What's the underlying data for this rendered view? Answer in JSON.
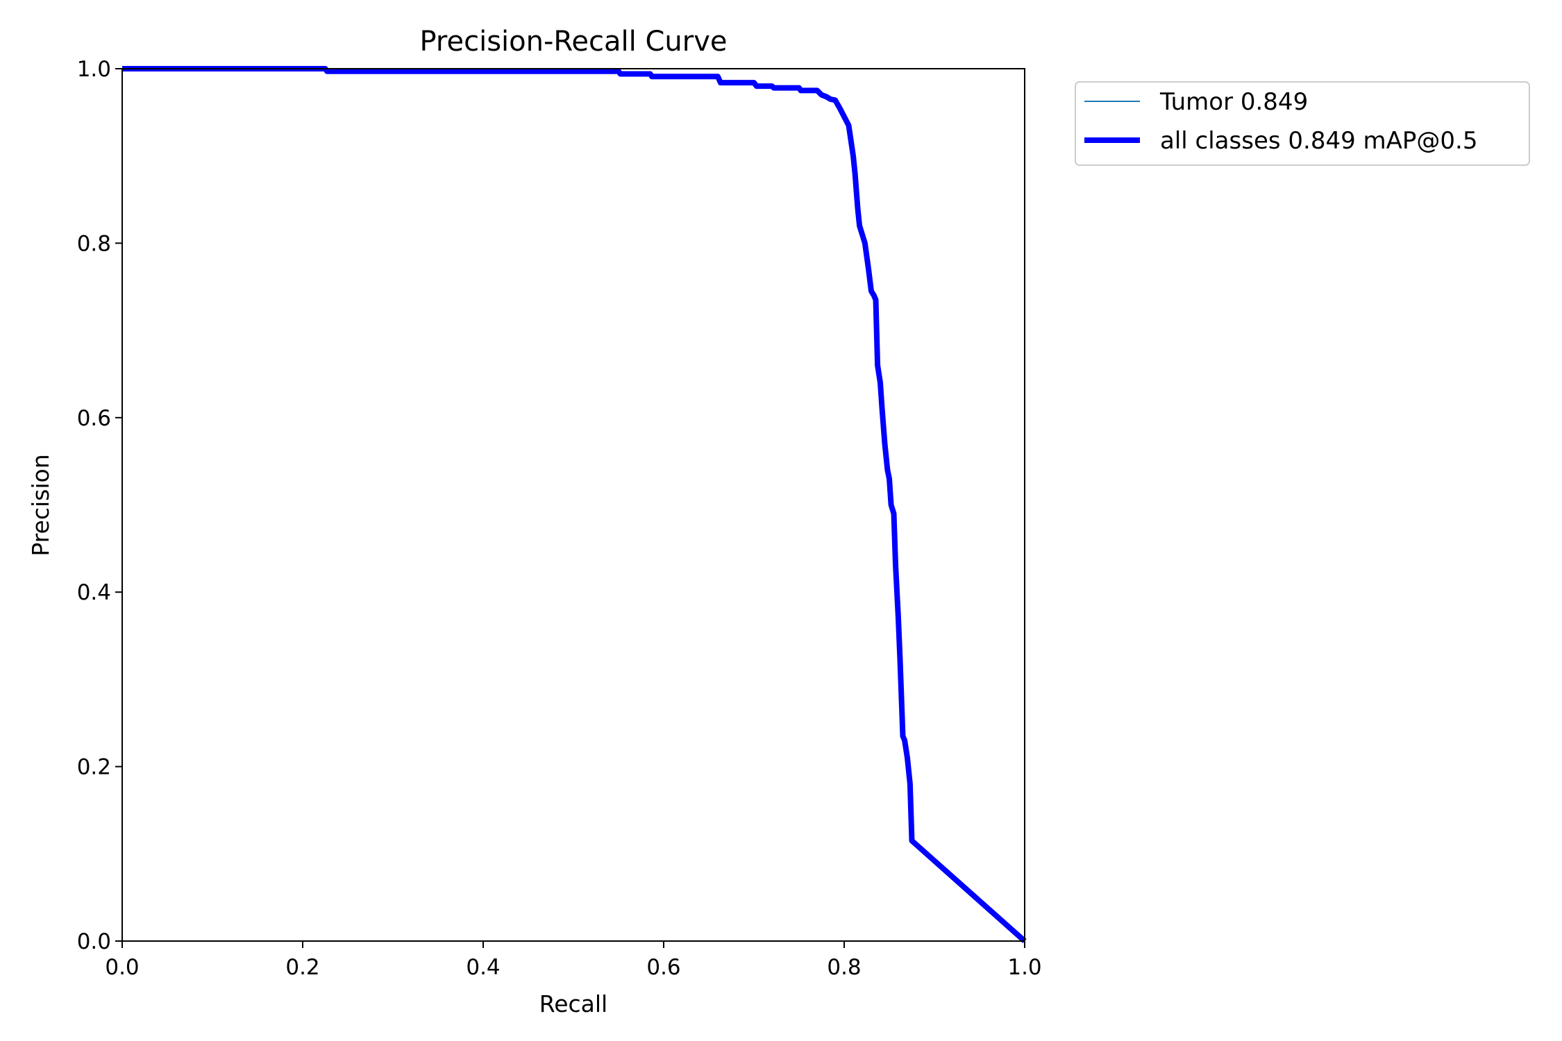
{
  "chart_data": {
    "type": "line",
    "title": "Precision-Recall Curve",
    "xlabel": "Recall",
    "ylabel": "Precision",
    "xlim": [
      0,
      1
    ],
    "ylim": [
      0,
      1
    ],
    "xticks": [
      "0.0",
      "0.2",
      "0.4",
      "0.6",
      "0.8",
      "1.0"
    ],
    "yticks": [
      "0.0",
      "0.2",
      "0.4",
      "0.6",
      "0.8",
      "1.0"
    ],
    "grid": false,
    "legend_position": "outside-top-right",
    "series": [
      {
        "name": "Tumor 0.849",
        "color": "#1f77b4",
        "style": "thin",
        "x": [
          0,
          0.225,
          0.227,
          0.55,
          0.552,
          0.585,
          0.587,
          0.66,
          0.663,
          0.7,
          0.703,
          0.72,
          0.722,
          0.75,
          0.752,
          0.77,
          0.775,
          0.78,
          0.785,
          0.79,
          0.795,
          0.8,
          0.805,
          0.81,
          0.812,
          0.815,
          0.817,
          0.82,
          0.823,
          0.827,
          0.83,
          0.833,
          0.835,
          0.837,
          0.84,
          0.842,
          0.845,
          0.848,
          0.85,
          0.852,
          0.855,
          0.857,
          0.86,
          0.862,
          0.865,
          0.867,
          0.87,
          0.873,
          0.875,
          1.0
        ],
        "y": [
          1.0,
          1.0,
          0.997,
          0.997,
          0.994,
          0.994,
          0.991,
          0.991,
          0.984,
          0.984,
          0.98,
          0.98,
          0.978,
          0.978,
          0.975,
          0.975,
          0.97,
          0.968,
          0.965,
          0.964,
          0.955,
          0.945,
          0.935,
          0.9,
          0.88,
          0.84,
          0.82,
          0.81,
          0.8,
          0.77,
          0.745,
          0.74,
          0.735,
          0.66,
          0.64,
          0.61,
          0.57,
          0.54,
          0.53,
          0.5,
          0.49,
          0.43,
          0.37,
          0.32,
          0.235,
          0.23,
          0.21,
          0.18,
          0.115,
          0.0
        ]
      },
      {
        "name": "all classes 0.849 mAP@0.5",
        "color": "#0000ff",
        "style": "thick",
        "x": [
          0,
          0.225,
          0.227,
          0.55,
          0.552,
          0.585,
          0.587,
          0.66,
          0.663,
          0.7,
          0.703,
          0.72,
          0.722,
          0.75,
          0.752,
          0.77,
          0.775,
          0.78,
          0.785,
          0.79,
          0.795,
          0.8,
          0.805,
          0.81,
          0.812,
          0.815,
          0.817,
          0.82,
          0.823,
          0.827,
          0.83,
          0.833,
          0.835,
          0.837,
          0.84,
          0.842,
          0.845,
          0.848,
          0.85,
          0.852,
          0.855,
          0.857,
          0.86,
          0.862,
          0.865,
          0.867,
          0.87,
          0.873,
          0.875,
          1.0
        ],
        "y": [
          1.0,
          1.0,
          0.997,
          0.997,
          0.994,
          0.994,
          0.991,
          0.991,
          0.984,
          0.984,
          0.98,
          0.98,
          0.978,
          0.978,
          0.975,
          0.975,
          0.97,
          0.968,
          0.965,
          0.964,
          0.955,
          0.945,
          0.935,
          0.9,
          0.88,
          0.84,
          0.82,
          0.81,
          0.8,
          0.77,
          0.745,
          0.74,
          0.735,
          0.66,
          0.64,
          0.61,
          0.57,
          0.54,
          0.53,
          0.5,
          0.49,
          0.43,
          0.37,
          0.32,
          0.235,
          0.23,
          0.21,
          0.18,
          0.115,
          0.0
        ]
      }
    ]
  }
}
